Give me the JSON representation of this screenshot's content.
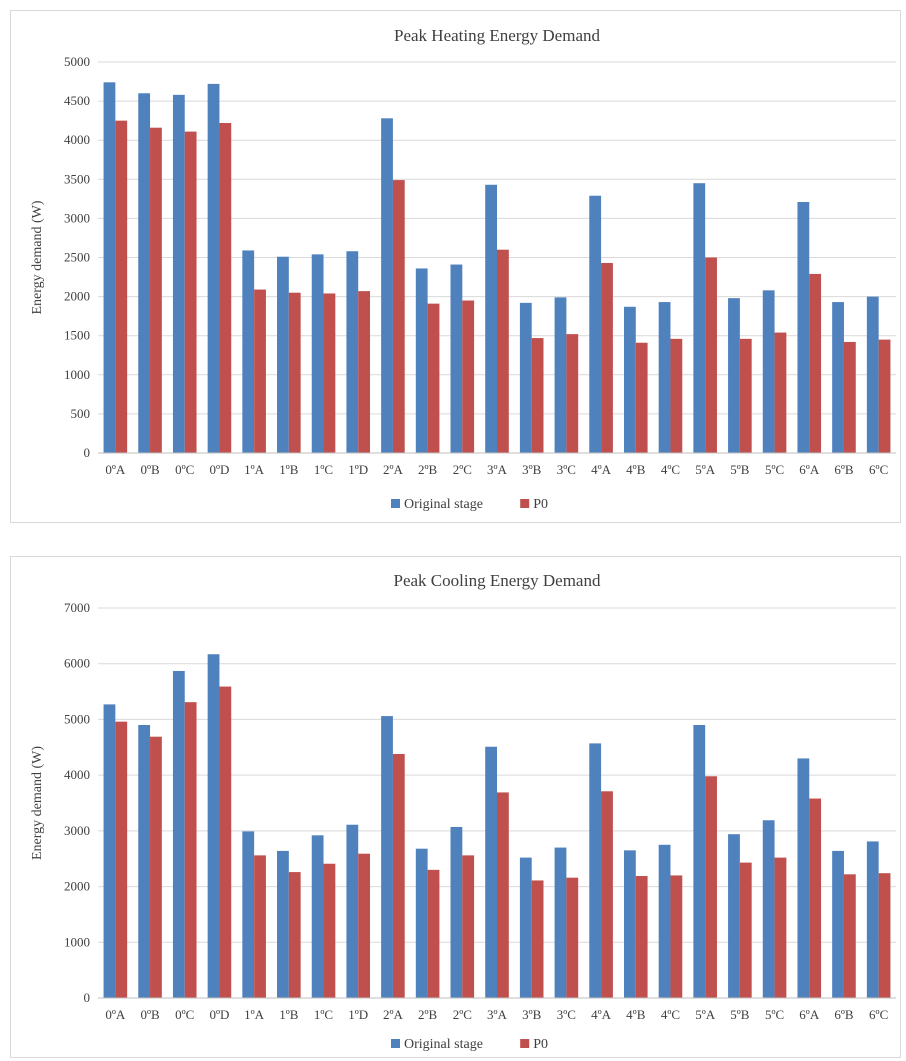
{
  "chart_data": [
    {
      "type": "bar",
      "title": "Peak Heating Energy Demand",
      "xlabel": "",
      "ylabel": "Energy demand (W)",
      "ylim": [
        0,
        5000
      ],
      "yticks": [
        "0",
        "500",
        "1000",
        "1500",
        "2000",
        "2500",
        "3000",
        "3500",
        "4000",
        "4500",
        "5000"
      ],
      "grid": true,
      "legend_position": "bottom",
      "categories": [
        "0ºA",
        "0ºB",
        "0ºC",
        "0ºD",
        "1ºA",
        "1ºB",
        "1ºC",
        "1ºD",
        "2ºA",
        "2ºB",
        "2ºC",
        "3ºA",
        "3ºB",
        "3ºC",
        "4ºA",
        "4ºB",
        "4ºC",
        "5ºA",
        "5ºB",
        "5ºC",
        "6ºA",
        "6ºB",
        "6ºC"
      ],
      "series": [
        {
          "name": "Original stage",
          "color": "#4f81bd",
          "values": [
            4740,
            4600,
            4580,
            4720,
            2590,
            2510,
            2540,
            2580,
            4280,
            2360,
            2410,
            3430,
            1920,
            1990,
            3290,
            1870,
            1930,
            3450,
            1980,
            2080,
            3210,
            1930,
            2000
          ]
        },
        {
          "name": "P0",
          "color": "#c0504d",
          "values": [
            4250,
            4160,
            4110,
            4220,
            2090,
            2050,
            2040,
            2070,
            3490,
            1910,
            1950,
            2600,
            1470,
            1520,
            2430,
            1410,
            1460,
            2500,
            1460,
            1540,
            2290,
            1420,
            1450
          ]
        }
      ]
    },
    {
      "type": "bar",
      "title": "Peak Cooling Energy Demand",
      "xlabel": "",
      "ylabel": "Energy demand (W)",
      "ylim": [
        0,
        7000
      ],
      "yticks": [
        "0",
        "1000",
        "2000",
        "3000",
        "4000",
        "5000",
        "6000",
        "7000"
      ],
      "grid": true,
      "legend_position": "bottom",
      "categories": [
        "0ºA",
        "0ºB",
        "0ºC",
        "0ºD",
        "1ºA",
        "1ºB",
        "1ºC",
        "1ºD",
        "2ºA",
        "2ºB",
        "2ºC",
        "3ºA",
        "3ºB",
        "3ºC",
        "4ºA",
        "4ºB",
        "4ºC",
        "5ºA",
        "5ºB",
        "5ºC",
        "6ºA",
        "6ºB",
        "6ºC"
      ],
      "series": [
        {
          "name": "Original stage",
          "color": "#4f81bd",
          "values": [
            5270,
            4900,
            5870,
            6170,
            2990,
            2640,
            2920,
            3110,
            5060,
            2680,
            3070,
            4510,
            2520,
            2700,
            4570,
            2650,
            2750,
            4900,
            2940,
            3190,
            4300,
            2640,
            2810
          ]
        },
        {
          "name": "P0",
          "color": "#c0504d",
          "values": [
            4960,
            4690,
            5310,
            5590,
            2560,
            2260,
            2410,
            2590,
            4380,
            2300,
            2560,
            3690,
            2110,
            2160,
            3710,
            2190,
            2200,
            3980,
            2430,
            2520,
            3580,
            2220,
            2240
          ]
        }
      ]
    }
  ]
}
